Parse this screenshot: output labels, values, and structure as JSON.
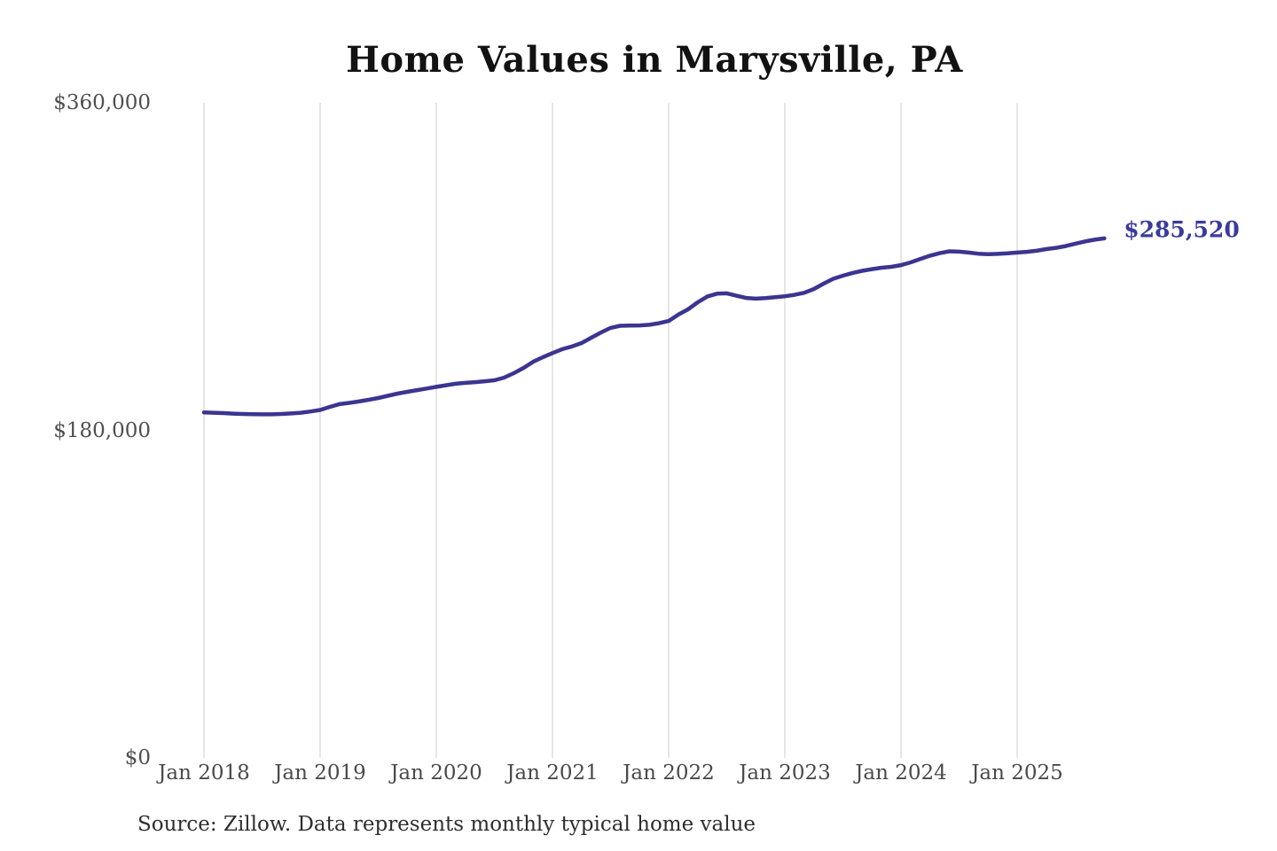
{
  "chart": {
    "title": "Home Values in Marysville, PA",
    "end_label": "$285,520",
    "source": "Source: Zillow. Data represents monthly typical home value",
    "colors": {
      "line": "#3b3590",
      "end_label": "#3b3b9c",
      "grid": "#cccccc",
      "axis_text": "#4a4a4a",
      "title_text": "#121212",
      "source_text": "#2e2e2e"
    }
  },
  "chart_data": {
    "type": "line",
    "title": "Home Values in Marysville, PA",
    "series_name": "Typical home value (monthly)",
    "interval": "monthly",
    "x_start": "Jan 2018",
    "x_end": "Oct 2025",
    "x_tick_labels": [
      "Jan 2018",
      "Jan 2019",
      "Jan 2020",
      "Jan 2021",
      "Jan 2022",
      "Jan 2023",
      "Jan 2024",
      "Jan 2025"
    ],
    "y_ticks": [
      {
        "value": 0,
        "label": "$0"
      },
      {
        "value": 180000,
        "label": "$180,000"
      },
      {
        "value": 360000,
        "label": "$360,000"
      }
    ],
    "ylim": [
      0,
      360000
    ],
    "grid": "vertical-only",
    "legend": "none",
    "annotation": "$285,520",
    "final_value": 285520,
    "source": "Source: Zillow. Data represents monthly typical home value",
    "values": [
      189900,
      189700,
      189500,
      189200,
      189000,
      188900,
      188800,
      188800,
      189000,
      189300,
      189700,
      190400,
      191200,
      192900,
      194400,
      195100,
      195900,
      196800,
      197800,
      199000,
      200200,
      201200,
      202100,
      203000,
      203900,
      204800,
      205600,
      206100,
      206500,
      207000,
      207500,
      209000,
      211400,
      214300,
      217700,
      220200,
      222500,
      224600,
      226100,
      228000,
      230900,
      233800,
      236300,
      237500,
      237600,
      237700,
      238000,
      238900,
      240100,
      243600,
      246500,
      250400,
      253600,
      255100,
      255300,
      254000,
      252800,
      252400,
      252700,
      253200,
      253700,
      254500,
      255600,
      257700,
      260600,
      263300,
      265000,
      266500,
      267700,
      268600,
      269400,
      269900,
      270800,
      272300,
      274200,
      276000,
      277400,
      278400,
      278200,
      277700,
      277100,
      276800,
      277000,
      277300,
      277700,
      278100,
      278700,
      279600,
      280300,
      281300,
      282600,
      283800,
      284800,
      285520
    ]
  }
}
